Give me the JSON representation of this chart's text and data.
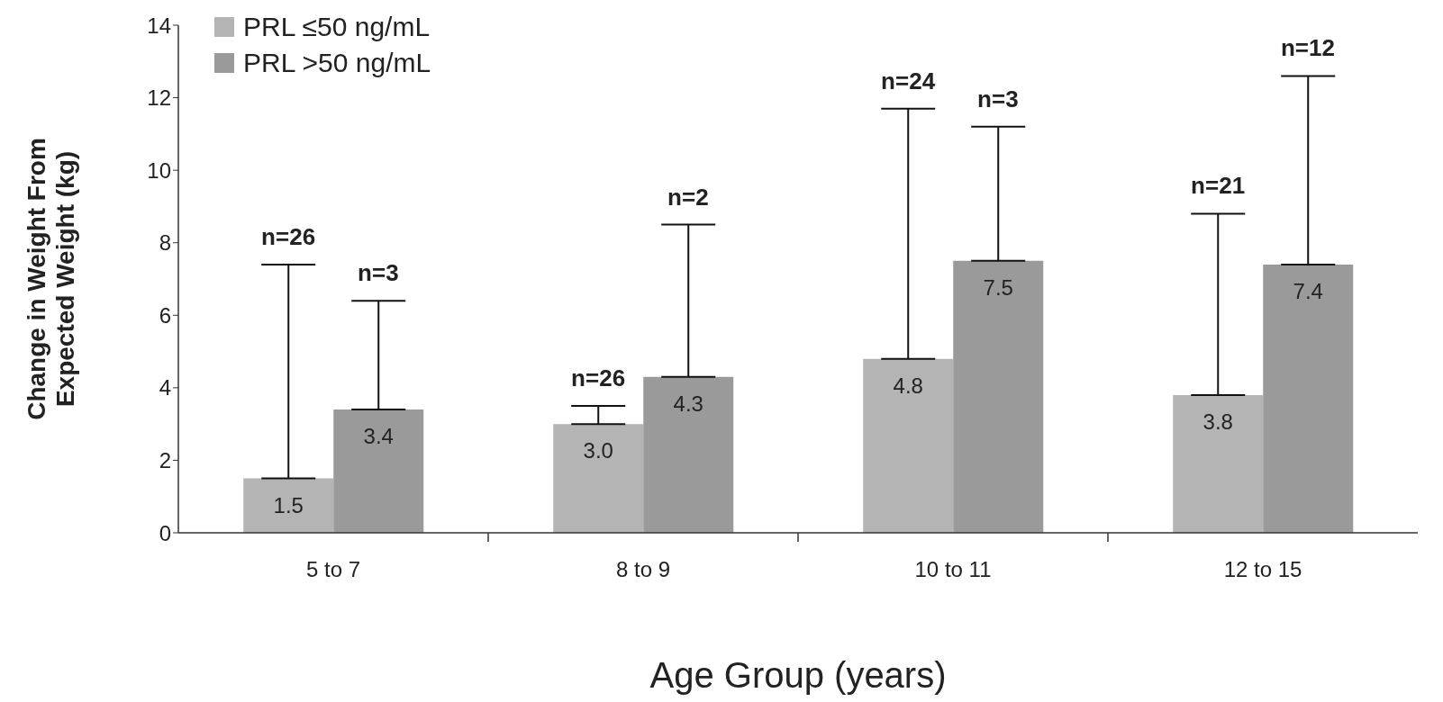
{
  "chart_data": {
    "type": "bar",
    "xlabel": "Age Group (years)",
    "ylabel": "Change in Weight From\nExpected Weight (kg)",
    "categories": [
      "5 to 7",
      "8 to 9",
      "10 to 11",
      "12 to 15"
    ],
    "series": [
      {
        "name": "PRL ≤50 ng/mL",
        "color": "#b4b4b4",
        "values": [
          1.5,
          3.0,
          4.8,
          3.8
        ],
        "value_labels": [
          "1.5",
          "3.0",
          "4.8",
          "3.8"
        ],
        "errors": [
          [
            1.5,
            7.4
          ],
          [
            3.0,
            3.5
          ],
          [
            4.8,
            11.7
          ],
          [
            3.8,
            8.8
          ]
        ]
      },
      {
        "name": "PRL >50 ng/mL",
        "color": "#9a9a9a",
        "values": [
          3.4,
          4.3,
          7.5,
          7.4
        ],
        "value_labels": [
          "3.4",
          "4.3",
          "7.5",
          "7.4"
        ],
        "errors": [
          [
            3.4,
            6.4
          ],
          [
            4.3,
            8.5
          ],
          [
            7.5,
            11.2
          ],
          [
            7.4,
            12.6
          ]
        ]
      }
    ],
    "annotations": [
      "n=26",
      "n=3",
      "n=26",
      "n=2",
      "n=24",
      "n=3",
      "n=21",
      "n=12"
    ],
    "ylim": [
      0,
      14
    ],
    "yticks": [
      0,
      2,
      4,
      6,
      8,
      10,
      12,
      14
    ],
    "grid": false,
    "legend": "top left"
  }
}
